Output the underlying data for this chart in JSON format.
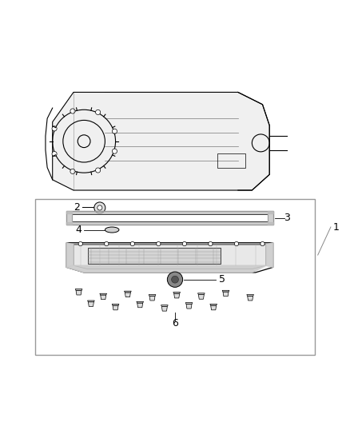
{
  "bg_color": "#ffffff",
  "line_color": "#000000",
  "gray_color": "#888888",
  "light_gray": "#cccccc"
}
